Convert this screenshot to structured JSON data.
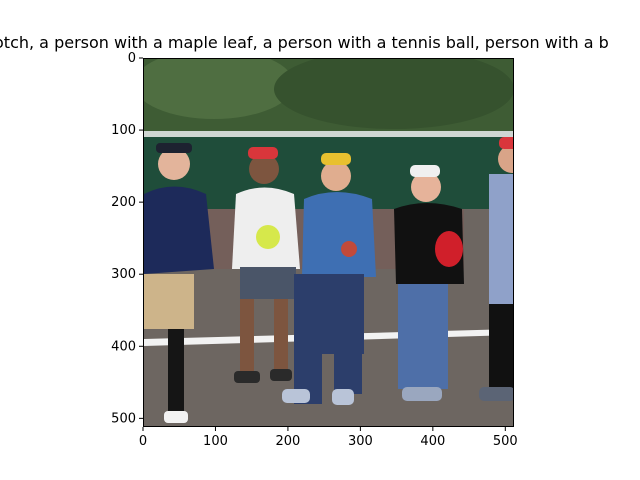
{
  "figure": {
    "title": "otch,  a person with a maple leaf, a person with a tennis ball, person with a b"
  },
  "axes": {
    "x_ticks": [
      "0",
      "100",
      "200",
      "300",
      "400",
      "500"
    ],
    "y_ticks": [
      "0",
      "100",
      "200",
      "300",
      "400",
      "500"
    ],
    "x_tick_values": [
      0,
      100,
      200,
      300,
      400,
      500
    ],
    "y_tick_values": [
      0,
      100,
      200,
      300,
      400,
      500
    ],
    "xlim": [
      0,
      512
    ],
    "ylim": [
      512,
      0
    ]
  },
  "colors": {
    "sky": "#d8e3d5",
    "trees": "#3e5c34",
    "court": "#6d6661",
    "net": "#1f4d3a"
  }
}
